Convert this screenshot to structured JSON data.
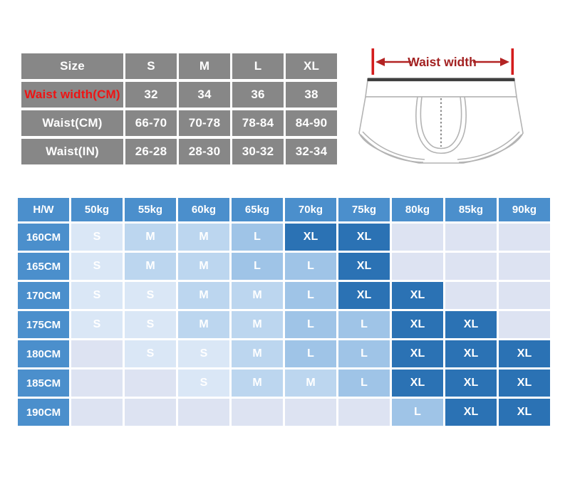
{
  "size_chart": {
    "columns": [
      "Size",
      "S",
      "M",
      "L",
      "XL"
    ],
    "rows": [
      {
        "label": "Waist width(CM)",
        "red": true,
        "values": [
          "32",
          "34",
          "36",
          "38"
        ]
      },
      {
        "label": "Waist(CM)",
        "red": false,
        "values": [
          "66-70",
          "70-78",
          "78-84",
          "84-90"
        ]
      },
      {
        "label": "Waist(IN)",
        "red": false,
        "values": [
          "26-28",
          "28-30",
          "30-32",
          "32-34"
        ]
      }
    ]
  },
  "illustration": {
    "label": "Waist width"
  },
  "hw_chart": {
    "corner": "H/W",
    "weights": [
      "50kg",
      "55kg",
      "60kg",
      "65kg",
      "70kg",
      "75kg",
      "80kg",
      "85kg",
      "90kg"
    ],
    "heights": [
      "160CM",
      "165CM",
      "170CM",
      "175CM",
      "180CM",
      "185CM",
      "190CM"
    ],
    "matrix": [
      [
        "S",
        "M",
        "M",
        "L",
        "XL",
        "XL",
        "",
        "",
        ""
      ],
      [
        "S",
        "M",
        "M",
        "L",
        "L",
        "XL",
        "",
        "",
        ""
      ],
      [
        "S",
        "S",
        "M",
        "M",
        "L",
        "XL",
        "XL",
        "",
        ""
      ],
      [
        "S",
        "S",
        "M",
        "M",
        "L",
        "L",
        "XL",
        "XL",
        ""
      ],
      [
        "",
        "S",
        "S",
        "M",
        "L",
        "L",
        "XL",
        "XL",
        "XL"
      ],
      [
        "",
        "",
        "S",
        "M",
        "M",
        "L",
        "XL",
        "XL",
        "XL"
      ],
      [
        "",
        "",
        "",
        "",
        "",
        "",
        "L",
        "XL",
        "XL"
      ]
    ]
  },
  "colors": {
    "table_gray": "#878787",
    "label_red": "#ee1414",
    "header_blue": "#4b8fcc",
    "xl_blue": "#2b72b4",
    "l_blue": "#9fc4e7",
    "m_blue": "#bcd6ef",
    "s_blue": "#dae7f6",
    "empty_blue": "#dde3f2",
    "arrow_red": "#b32323",
    "bar_red": "#d41c1c",
    "text_dark_red": "#a32222",
    "sketch_gray": "#b3b3b3",
    "band_dark": "#3f3f3f"
  }
}
